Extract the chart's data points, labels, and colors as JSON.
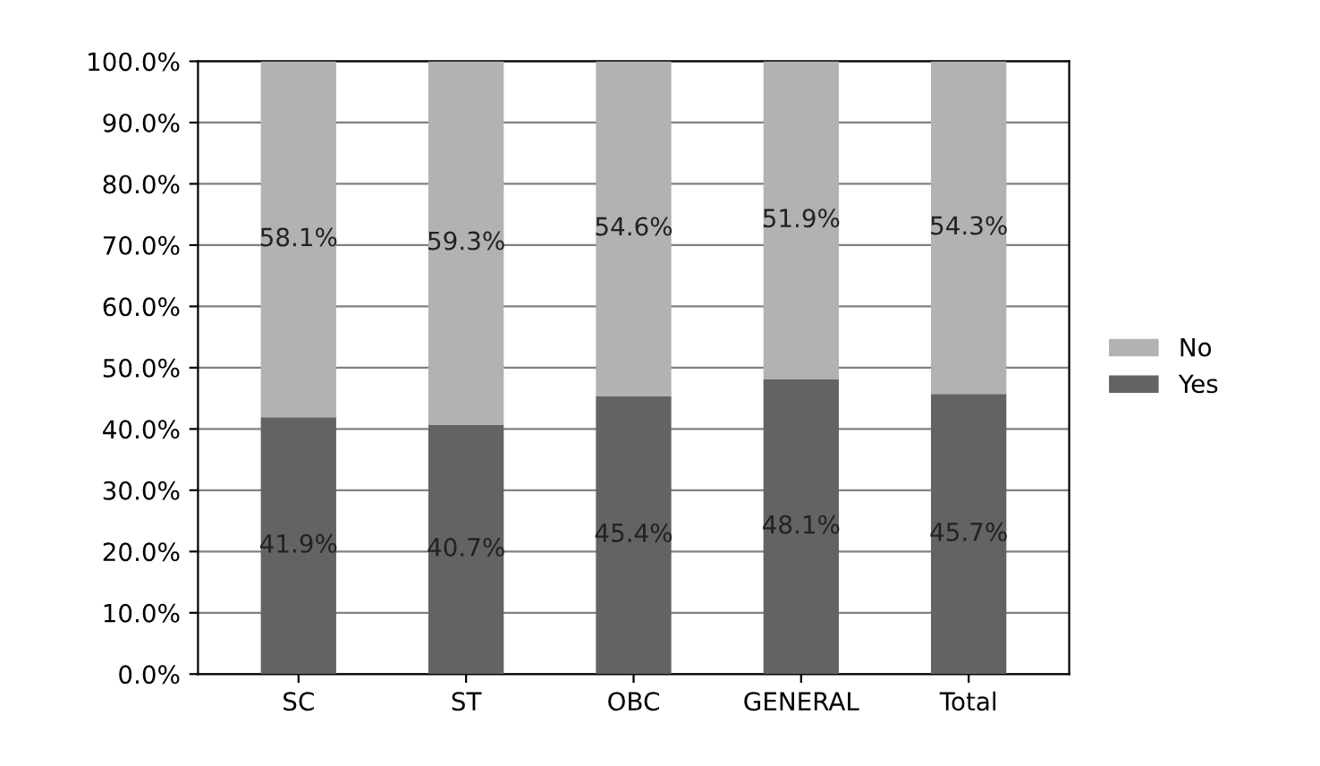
{
  "chart_data": {
    "type": "bar",
    "stacked": true,
    "categories": [
      "SC",
      "ST",
      "OBC",
      "GENERAL",
      "Total"
    ],
    "series": [
      {
        "name": "Yes",
        "color": "#636363",
        "values": [
          41.9,
          40.7,
          45.4,
          48.1,
          45.7
        ],
        "value_labels": [
          "41.9%",
          "40.7%",
          "45.4%",
          "48.1%",
          "45.7%"
        ]
      },
      {
        "name": "No",
        "color": "#b2b2b2",
        "values": [
          58.1,
          59.3,
          54.6,
          51.9,
          54.3
        ],
        "value_labels": [
          "58.1%",
          "59.3%",
          "54.6%",
          "51.9%",
          "54.3%"
        ]
      }
    ],
    "ylim": [
      0,
      100
    ],
    "yticks": [
      {
        "value": 0,
        "label": "0.0%"
      },
      {
        "value": 10,
        "label": "10.0%"
      },
      {
        "value": 20,
        "label": "20.0%"
      },
      {
        "value": 30,
        "label": "30.0%"
      },
      {
        "value": 40,
        "label": "40.0%"
      },
      {
        "value": 50,
        "label": "50.0%"
      },
      {
        "value": 60,
        "label": "60.0%"
      },
      {
        "value": 70,
        "label": "70.0%"
      },
      {
        "value": 80,
        "label": "80.0%"
      },
      {
        "value": 90,
        "label": "90.0%"
      },
      {
        "value": 100,
        "label": "100.0%"
      }
    ],
    "grid": "y",
    "legend": "right"
  }
}
